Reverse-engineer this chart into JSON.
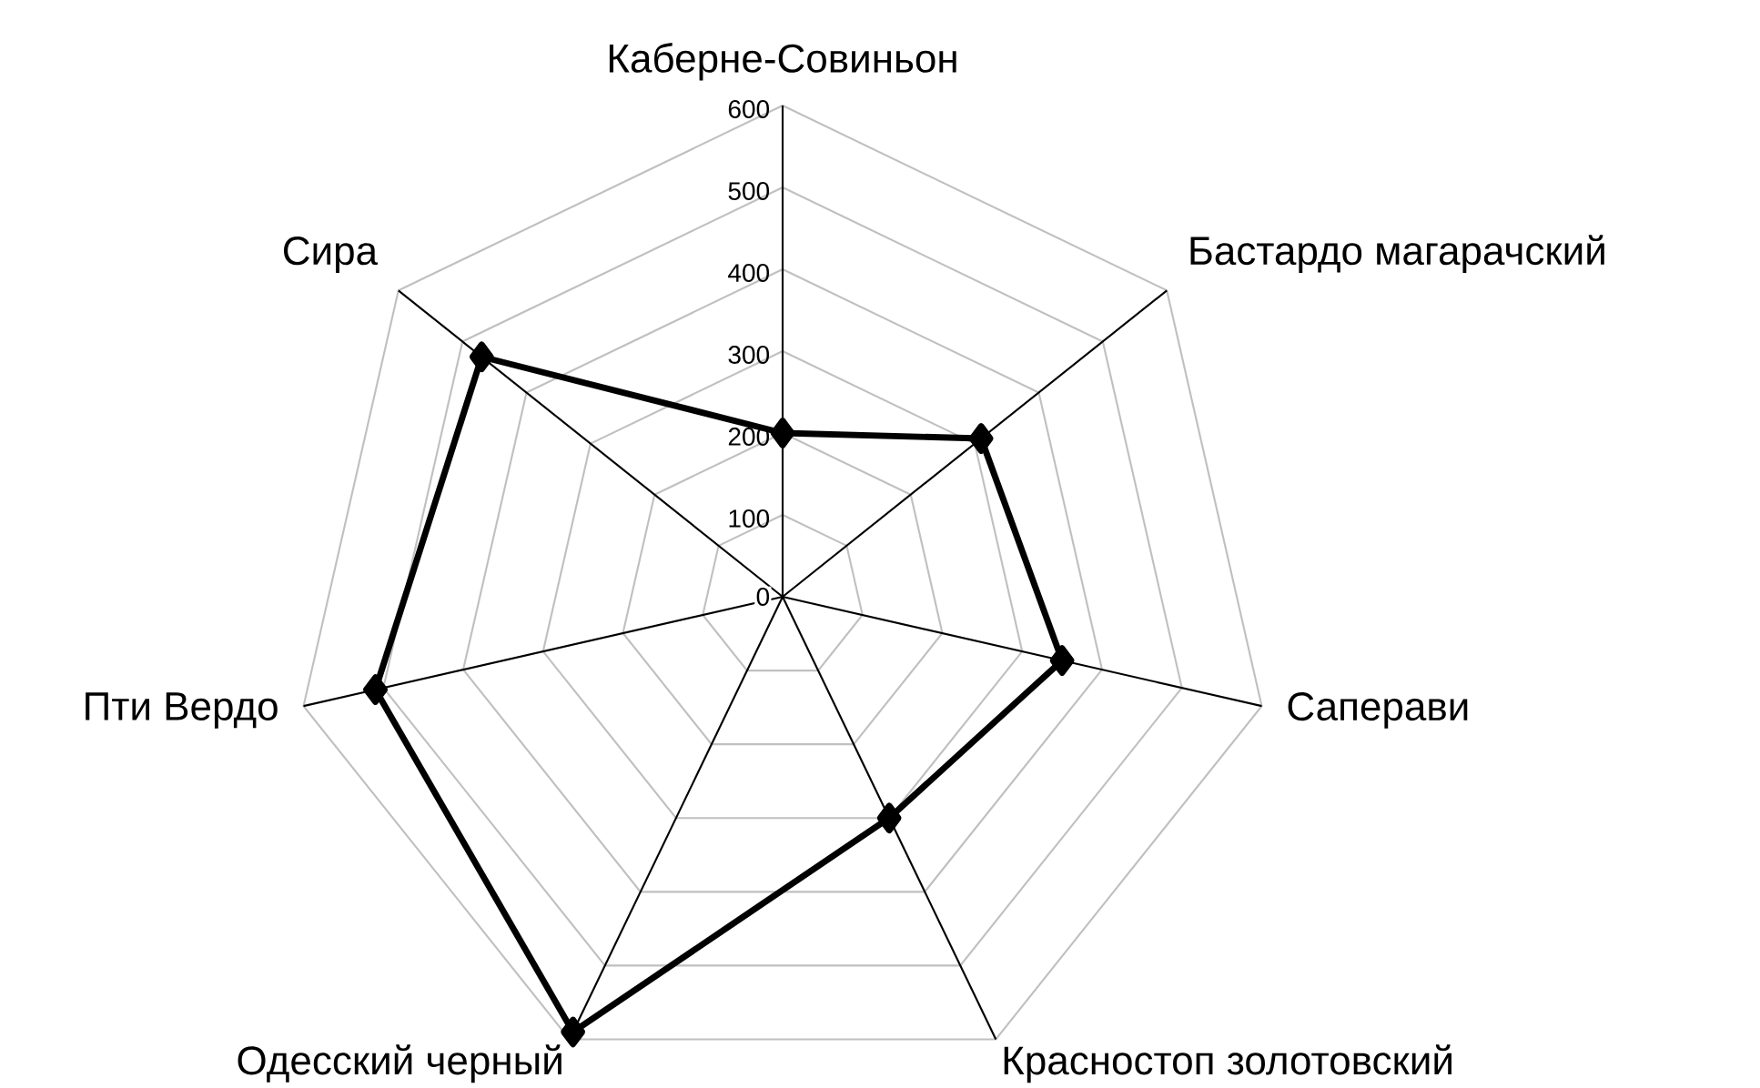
{
  "chart_data": {
    "type": "radar",
    "categories": [
      "Каберне-Совиньон",
      "Бастардо магарачский",
      "Саперави",
      "Красностоп золотовский",
      "Одесский черный",
      "Пти Вердо",
      "Сира"
    ],
    "series": [
      {
        "color": "#000000",
        "values": [
          200,
          310,
          350,
          300,
          590,
          510,
          470
        ]
      }
    ],
    "ylim": [
      0,
      600
    ],
    "yticks": [
      0,
      100,
      200,
      300,
      400,
      500,
      600
    ],
    "grid": true,
    "marker": "diamond",
    "line_style": "solid"
  }
}
